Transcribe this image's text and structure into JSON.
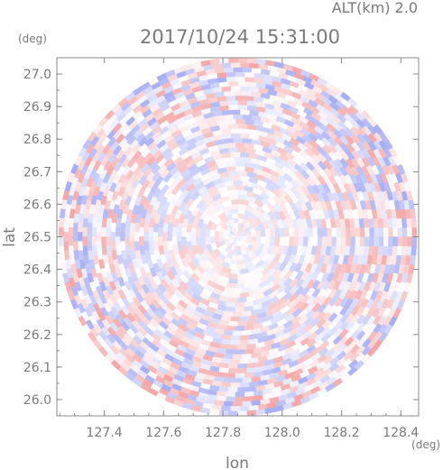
{
  "chart_data": {
    "type": "heatmap",
    "subtype": "radar PPI (polar scan, circular coverage)",
    "title": "2017/10/24 15:31:00",
    "header": "ALT(km) 2.0",
    "xlabel": "lon",
    "ylabel": "lat",
    "x_unit": "(deg)",
    "y_unit": "(deg)",
    "xlim": [
      127.24,
      128.46
    ],
    "ylim": [
      25.95,
      27.05
    ],
    "xticks": [
      "127.4",
      "127.6",
      "127.8",
      "128.0",
      "128.2",
      "128.4"
    ],
    "xtick_values": [
      127.4,
      127.6,
      127.8,
      128.0,
      128.2,
      128.4
    ],
    "yticks": [
      "26.0",
      "26.1",
      "26.2",
      "26.3",
      "26.4",
      "26.5",
      "26.6",
      "26.7",
      "26.8",
      "26.9",
      "27.0"
    ],
    "ytick_values": [
      26.0,
      26.1,
      26.2,
      26.3,
      26.4,
      26.5,
      26.6,
      26.7,
      26.8,
      26.9,
      27.0
    ],
    "center": {
      "lon": 127.85,
      "lat": 26.5
    },
    "radius_deg": {
      "lon": 0.61,
      "lat": 0.55
    },
    "colormap": {
      "positive": "#f4a6a6",
      "negative": "#a6aef4",
      "zero": "#ffffff"
    },
    "grid": false,
    "legend": "none"
  }
}
